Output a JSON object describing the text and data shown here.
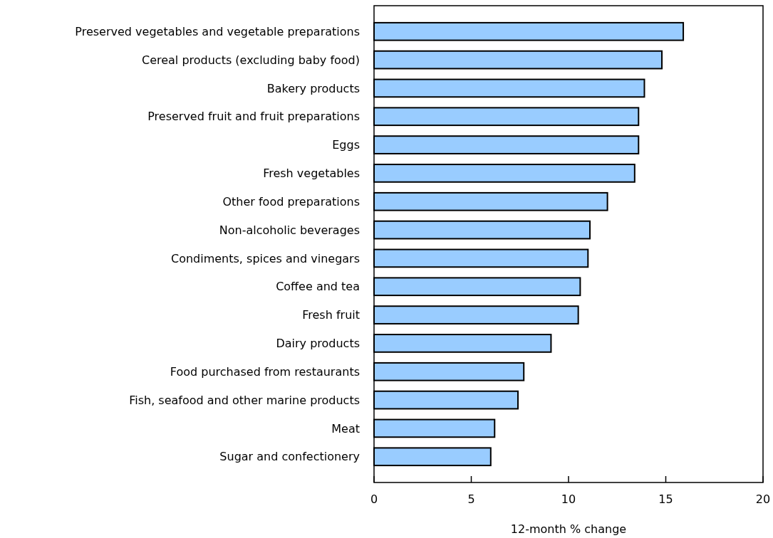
{
  "chart_data": {
    "type": "bar",
    "orientation": "horizontal",
    "xlabel": "12-month % change",
    "categories": [
      "Preserved vegetables and vegetable preparations",
      "Cereal products (excluding baby food)",
      "Bakery products",
      "Preserved fruit and fruit preparations",
      "Eggs",
      "Fresh vegetables",
      "Other food preparations",
      "Non-alcoholic beverages",
      "Condiments, spices and vinegars",
      "Coffee and tea",
      "Fresh fruit",
      "Dairy products",
      "Food purchased from restaurants",
      "Fish, seafood and other marine products",
      "Meat",
      "Sugar and confectionery"
    ],
    "values": [
      15.9,
      14.8,
      13.9,
      13.6,
      13.6,
      13.4,
      12.0,
      11.1,
      11.0,
      10.6,
      10.5,
      9.1,
      7.7,
      7.4,
      6.2,
      6.0
    ],
    "color": "#99ccff",
    "xlim": [
      0,
      20
    ],
    "xticks": [
      0,
      5,
      10,
      15,
      20
    ],
    "grid": false
  }
}
